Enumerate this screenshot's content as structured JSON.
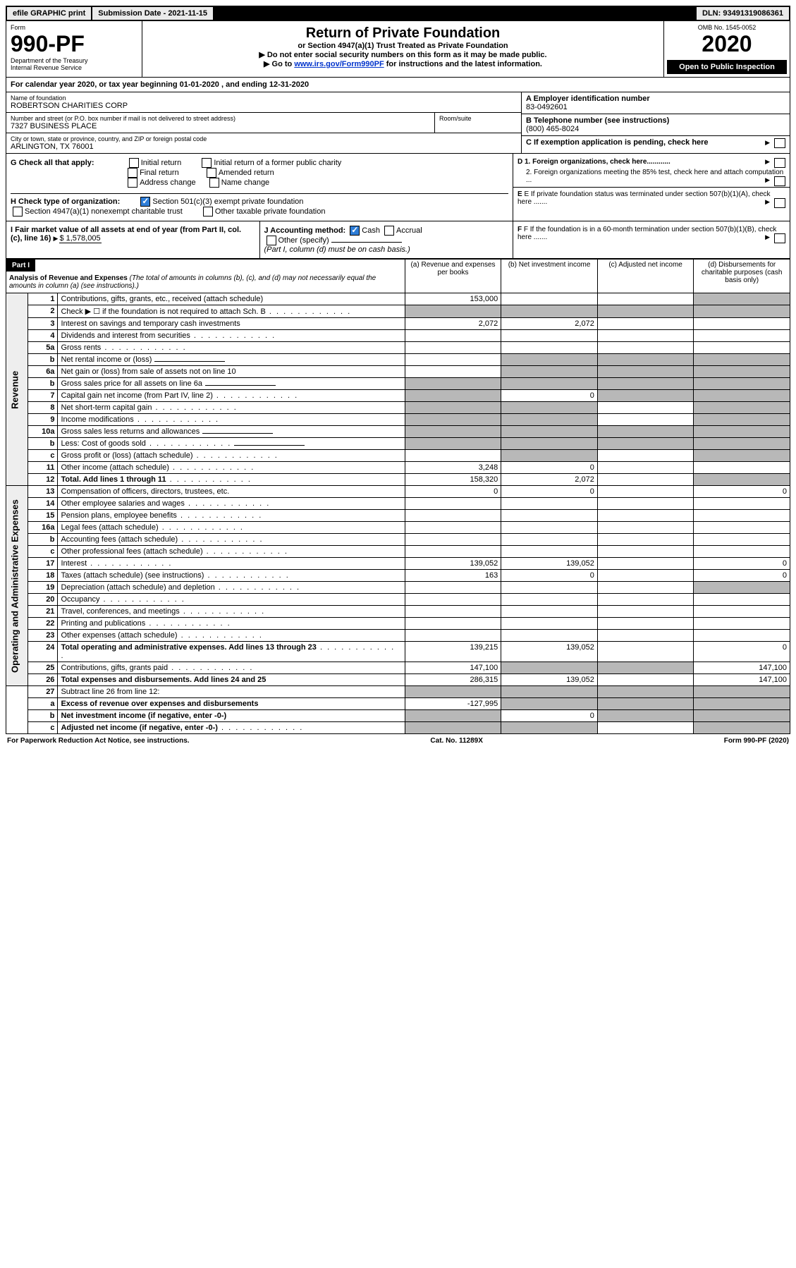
{
  "topbar": {
    "efile": "efile GRAPHIC print",
    "submission": "Submission Date - 2021-11-15",
    "dln": "DLN: 93491319086361"
  },
  "header": {
    "form_label": "Form",
    "form_no": "990-PF",
    "dept": "Department of the Treasury",
    "irs": "Internal Revenue Service",
    "title": "Return of Private Foundation",
    "subtitle": "or Section 4947(a)(1) Trust Treated as Private Foundation",
    "note1": "▶ Do not enter social security numbers on this form as it may be made public.",
    "note2_pre": "▶ Go to ",
    "note2_link": "www.irs.gov/Form990PF",
    "note2_post": " for instructions and the latest information.",
    "omb": "OMB No. 1545-0052",
    "year": "2020",
    "open": "Open to Public Inspection"
  },
  "cal": {
    "text_pre": "For calendar year 2020, or tax year beginning ",
    "begin": "01-01-2020",
    "mid": " , and ending ",
    "end": "12-31-2020"
  },
  "info": {
    "name_label": "Name of foundation",
    "name": "ROBERTSON CHARITIES CORP",
    "addr_label": "Number and street (or P.O. box number if mail is not delivered to street address)",
    "addr": "7327 BUSINESS PLACE",
    "room_label": "Room/suite",
    "city_label": "City or town, state or province, country, and ZIP or foreign postal code",
    "city": "ARLINGTON, TX  76001",
    "a_label": "A Employer identification number",
    "a_val": "83-0492601",
    "b_label": "B Telephone number (see instructions)",
    "b_val": "(800) 465-8024",
    "c_label": "C If exemption application is pending, check here",
    "d1": "D 1. Foreign organizations, check here............",
    "d2": "2. Foreign organizations meeting the 85% test, check here and attach computation ...",
    "e": "E  If private foundation status was terminated under section 507(b)(1)(A), check here .......",
    "f": "F  If the foundation is in a 60-month termination under section 507(b)(1)(B), check here ......."
  },
  "g": {
    "label": "G Check all that apply:",
    "opts": [
      "Initial return",
      "Initial return of a former public charity",
      "Final return",
      "Amended return",
      "Address change",
      "Name change"
    ]
  },
  "h": {
    "label": "H Check type of organization:",
    "o1": "Section 501(c)(3) exempt private foundation",
    "o2": "Section 4947(a)(1) nonexempt charitable trust",
    "o3": "Other taxable private foundation"
  },
  "i": {
    "label": "I Fair market value of all assets at end of year (from Part II, col. (c), line 16) ",
    "val": "$  1,578,005"
  },
  "j": {
    "label": "J Accounting method:",
    "cash": "Cash",
    "accrual": "Accrual",
    "other": "Other (specify)",
    "note": "(Part I, column (d) must be on cash basis.)"
  },
  "part1": {
    "label": "Part I",
    "title": "Analysis of Revenue and Expenses",
    "sub": "(The total of amounts in columns (b), (c), and (d) may not necessarily equal the amounts in column (a) (see instructions).)",
    "cols": {
      "a": "(a) Revenue and expenses per books",
      "b": "(b) Net investment income",
      "c": "(c) Adjusted net income",
      "d": "(d) Disbursements for charitable purposes (cash basis only)"
    }
  },
  "sections": {
    "rev": "Revenue",
    "exp": "Operating and Administrative Expenses"
  },
  "rows": [
    {
      "n": "1",
      "d": "Contributions, gifts, grants, etc., received (attach schedule)",
      "a": "153,000",
      "b": "",
      "c": "",
      "ds": true,
      "sec": "rev"
    },
    {
      "n": "2",
      "d": "Check ▶ ☐ if the foundation is not required to attach Sch. B",
      "dots": true,
      "noamt": true,
      "sec": "rev"
    },
    {
      "n": "3",
      "d": "Interest on savings and temporary cash investments",
      "a": "2,072",
      "b": "2,072",
      "sec": "rev"
    },
    {
      "n": "4",
      "d": "Dividends and interest from securities",
      "dots": true,
      "sec": "rev"
    },
    {
      "n": "5a",
      "d": "Gross rents",
      "dots": true,
      "sec": "rev"
    },
    {
      "n": "b",
      "d": "Net rental income or (loss)",
      "inline": true,
      "sec": "rev",
      "shb": true,
      "shc": true,
      "shd": true
    },
    {
      "n": "6a",
      "d": "Net gain or (loss) from sale of assets not on line 10",
      "sec": "rev",
      "shb": true,
      "shc": true,
      "shd": true
    },
    {
      "n": "b",
      "d": "Gross sales price for all assets on line 6a",
      "inline": true,
      "sec": "rev",
      "sha": true,
      "shb": true,
      "shc": true,
      "shd": true
    },
    {
      "n": "7",
      "d": "Capital gain net income (from Part IV, line 2)",
      "dots": true,
      "sec": "rev",
      "b": "0",
      "sha": true,
      "shc": true,
      "shd": true
    },
    {
      "n": "8",
      "d": "Net short-term capital gain",
      "dots": true,
      "sec": "rev",
      "sha": true,
      "shb": true,
      "shd": true
    },
    {
      "n": "9",
      "d": "Income modifications",
      "dots": true,
      "sec": "rev",
      "sha": true,
      "shb": true,
      "shd": true
    },
    {
      "n": "10a",
      "d": "Gross sales less returns and allowances",
      "inline": true,
      "sec": "rev",
      "sha": true,
      "shb": true,
      "shc": true,
      "shd": true
    },
    {
      "n": "b",
      "d": "Less: Cost of goods sold",
      "dots": true,
      "inline": true,
      "sec": "rev",
      "sha": true,
      "shb": true,
      "shc": true,
      "shd": true
    },
    {
      "n": "c",
      "d": "Gross profit or (loss) (attach schedule)",
      "dots": true,
      "sec": "rev",
      "shb": true,
      "shd": true
    },
    {
      "n": "11",
      "d": "Other income (attach schedule)",
      "dots": true,
      "a": "3,248",
      "b": "0",
      "sec": "rev"
    },
    {
      "n": "12",
      "d": "Total. Add lines 1 through 11",
      "dots": true,
      "bold": true,
      "a": "158,320",
      "b": "2,072",
      "sec": "rev",
      "shd": true
    },
    {
      "n": "13",
      "d": "Compensation of officers, directors, trustees, etc.",
      "a": "0",
      "b": "0",
      "dv": "0",
      "sec": "exp"
    },
    {
      "n": "14",
      "d": "Other employee salaries and wages",
      "dots": true,
      "sec": "exp"
    },
    {
      "n": "15",
      "d": "Pension plans, employee benefits",
      "dots": true,
      "sec": "exp"
    },
    {
      "n": "16a",
      "d": "Legal fees (attach schedule)",
      "dots": true,
      "sec": "exp"
    },
    {
      "n": "b",
      "d": "Accounting fees (attach schedule)",
      "dots": true,
      "sec": "exp"
    },
    {
      "n": "c",
      "d": "Other professional fees (attach schedule)",
      "dots": true,
      "sec": "exp"
    },
    {
      "n": "17",
      "d": "Interest",
      "dots": true,
      "a": "139,052",
      "b": "139,052",
      "dv": "0",
      "sec": "exp"
    },
    {
      "n": "18",
      "d": "Taxes (attach schedule) (see instructions)",
      "dots": true,
      "a": "163",
      "b": "0",
      "dv": "0",
      "sec": "exp"
    },
    {
      "n": "19",
      "d": "Depreciation (attach schedule) and depletion",
      "dots": true,
      "sec": "exp",
      "shd": true
    },
    {
      "n": "20",
      "d": "Occupancy",
      "dots": true,
      "sec": "exp"
    },
    {
      "n": "21",
      "d": "Travel, conferences, and meetings",
      "dots": true,
      "sec": "exp"
    },
    {
      "n": "22",
      "d": "Printing and publications",
      "dots": true,
      "sec": "exp"
    },
    {
      "n": "23",
      "d": "Other expenses (attach schedule)",
      "dots": true,
      "sec": "exp"
    },
    {
      "n": "24",
      "d": "Total operating and administrative expenses. Add lines 13 through 23",
      "dots": true,
      "bold": true,
      "a": "139,215",
      "b": "139,052",
      "dv": "0",
      "sec": "exp"
    },
    {
      "n": "25",
      "d": "Contributions, gifts, grants paid",
      "dots": true,
      "a": "147,100",
      "dv": "147,100",
      "sec": "exp",
      "shb": true,
      "shc": true
    },
    {
      "n": "26",
      "d": "Total expenses and disbursements. Add lines 24 and 25",
      "bold": true,
      "a": "286,315",
      "b": "139,052",
      "dv": "147,100",
      "sec": "exp"
    },
    {
      "n": "27",
      "d": "Subtract line 26 from line 12:",
      "sec": "none",
      "sha": true,
      "shb": true,
      "shc": true,
      "shd": true
    },
    {
      "n": "a",
      "d": "Excess of revenue over expenses and disbursements",
      "bold": true,
      "a": "-127,995",
      "sec": "none",
      "shb": true,
      "shc": true,
      "shd": true
    },
    {
      "n": "b",
      "d": "Net investment income (if negative, enter -0-)",
      "bold": true,
      "b": "0",
      "sec": "none",
      "sha": true,
      "shc": true,
      "shd": true
    },
    {
      "n": "c",
      "d": "Adjusted net income (if negative, enter -0-)",
      "bold": true,
      "dots": true,
      "sec": "none",
      "sha": true,
      "shb": true,
      "shd": true
    }
  ],
  "footer": {
    "left": "For Paperwork Reduction Act Notice, see instructions.",
    "mid": "Cat. No. 11289X",
    "right": "Form 990-PF (2020)"
  },
  "colors": {
    "shade": "#b8b8b8",
    "link": "#0033cc",
    "check": "#2e7dd7"
  }
}
